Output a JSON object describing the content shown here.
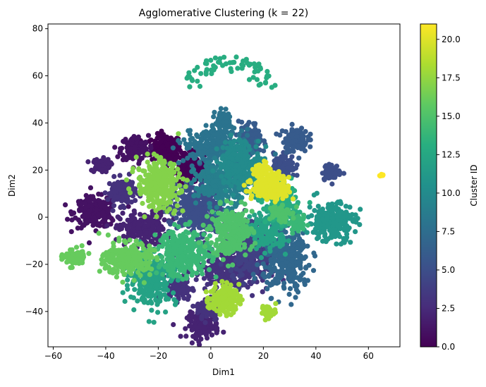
{
  "chart_data": {
    "type": "scatter",
    "title": "Agglomerative Clustering (k = 22)",
    "xlabel": "Dim1",
    "ylabel": "Dim2",
    "xlim": [
      -62,
      72
    ],
    "ylim": [
      -55,
      82
    ],
    "x_ticks": [
      -60,
      -40,
      -20,
      0,
      20,
      40,
      60
    ],
    "y_ticks": [
      -40,
      -20,
      0,
      20,
      40,
      60,
      80
    ],
    "grid": false,
    "colorbar": {
      "label": "Cluster ID",
      "range": [
        0,
        21
      ],
      "ticks": [
        0.0,
        2.5,
        5.0,
        7.5,
        10.0,
        12.5,
        15.0,
        17.5,
        20.0
      ],
      "tick_labels": [
        "0.0",
        "2.5",
        "5.0",
        "7.5",
        "10.0",
        "12.5",
        "15.0",
        "17.5",
        "20.0"
      ],
      "colormap": "viridis"
    },
    "clusters": [
      {
        "id": 0,
        "center": [
          -17,
          29
        ],
        "sx": 2.8,
        "sy": 3,
        "n": 180
      },
      {
        "id": 0,
        "center": [
          -8,
          21
        ],
        "sx": 3,
        "sy": 3.2,
        "n": 160
      },
      {
        "id": 1,
        "center": [
          -44,
          2
        ],
        "sx": 4,
        "sy": 3.2,
        "n": 220
      },
      {
        "id": 1,
        "center": [
          -29,
          29
        ],
        "sx": 2.6,
        "sy": 2.8,
        "n": 150
      },
      {
        "id": 2,
        "center": [
          -42,
          22
        ],
        "sx": 1.8,
        "sy": 1.4,
        "n": 70
      },
      {
        "id": 2,
        "center": [
          -26,
          -5
        ],
        "sx": 4.5,
        "sy": 3.5,
        "n": 220
      },
      {
        "id": 2,
        "center": [
          -3,
          -46
        ],
        "sx": 3,
        "sy": 2.6,
        "n": 120
      },
      {
        "id": 3,
        "center": [
          -34,
          11
        ],
        "sx": 2.6,
        "sy": 2.8,
        "n": 130
      },
      {
        "id": 3,
        "center": [
          8,
          -22
        ],
        "sx": 7,
        "sy": 4.5,
        "n": 320
      },
      {
        "id": 3,
        "center": [
          -12,
          -30
        ],
        "sx": 2.4,
        "sy": 2.6,
        "n": 90
      },
      {
        "id": 3,
        "center": [
          -1,
          -39
        ],
        "sx": 2.2,
        "sy": 2.4,
        "n": 90
      },
      {
        "id": 4,
        "center": [
          15,
          -12
        ],
        "sx": 4,
        "sy": 6,
        "n": 260
      },
      {
        "id": 5,
        "center": [
          -6,
          3
        ],
        "sx": 5,
        "sy": 5.5,
        "n": 320
      },
      {
        "id": 5,
        "center": [
          28,
          22
        ],
        "sx": 2,
        "sy": 2.5,
        "n": 100
      },
      {
        "id": 5,
        "center": [
          46,
          19
        ],
        "sx": 1.8,
        "sy": 1.6,
        "n": 60
      },
      {
        "id": 6,
        "center": [
          32,
          33
        ],
        "sx": 2.4,
        "sy": 2.6,
        "n": 110
      },
      {
        "id": 6,
        "center": [
          15,
          33
        ],
        "sx": 2.2,
        "sy": 3.5,
        "n": 120
      },
      {
        "id": 7,
        "center": [
          29,
          -18
        ],
        "sx": 4.5,
        "sy": 7,
        "n": 300
      },
      {
        "id": 8,
        "center": [
          1,
          30
        ],
        "sx": 5.5,
        "sy": 3.5,
        "n": 280
      },
      {
        "id": 8,
        "center": [
          5,
          41
        ],
        "sx": 1.6,
        "sy": 2.2,
        "n": 70
      },
      {
        "id": 9,
        "center": [
          4,
          14
        ],
        "sx": 5,
        "sy": 4.5,
        "n": 280
      },
      {
        "id": 10,
        "center": [
          11,
          23
        ],
        "sx": 4,
        "sy": 5,
        "n": 240
      },
      {
        "id": 11,
        "center": [
          46,
          -2
        ],
        "sx": 4.5,
        "sy": 4,
        "n": 240
      },
      {
        "id": 11,
        "center": [
          19,
          12
        ],
        "sx": 2,
        "sy": 2,
        "n": 60
      },
      {
        "id": 12,
        "center": [
          -22,
          -26
        ],
        "sx": 4.5,
        "sy": 5.5,
        "n": 280
      },
      {
        "id": 12,
        "center": [
          22,
          -6
        ],
        "sx": 3.5,
        "sy": 4,
        "n": 160
      },
      {
        "id": 13,
        "center": [
          7,
          64
        ],
        "sx": 11,
        "sy": 6,
        "n": 70,
        "sparse": true
      },
      {
        "id": 13,
        "center": [
          27,
          5
        ],
        "sx": 3,
        "sy": 3.5,
        "n": 160
      },
      {
        "id": 14,
        "center": [
          -10,
          -15
        ],
        "sx": 5,
        "sy": 5,
        "n": 300
      },
      {
        "id": 14,
        "center": [
          33,
          -3
        ],
        "sx": 1.6,
        "sy": 1.6,
        "n": 50
      },
      {
        "id": 15,
        "center": [
          8,
          -6
        ],
        "sx": 4,
        "sy": 5,
        "n": 240
      },
      {
        "id": 15,
        "center": [
          26,
          2
        ],
        "sx": 2,
        "sy": 2,
        "n": 70
      },
      {
        "id": 16,
        "center": [
          -32,
          -18
        ],
        "sx": 4.5,
        "sy": 3.5,
        "n": 240
      },
      {
        "id": 16,
        "center": [
          -52,
          -17
        ],
        "sx": 2,
        "sy": 1.8,
        "n": 90
      },
      {
        "id": 17,
        "center": [
          -20,
          14
        ],
        "sx": 4,
        "sy": 5,
        "n": 320
      },
      {
        "id": 18,
        "center": [
          5,
          -35
        ],
        "sx": 2.8,
        "sy": 3,
        "n": 150
      },
      {
        "id": 18,
        "center": [
          22,
          -40
        ],
        "sx": 1.4,
        "sy": 1.4,
        "n": 40
      },
      {
        "id": 20,
        "center": [
          23,
          13
        ],
        "sx": 3.5,
        "sy": 3,
        "n": 200
      },
      {
        "id": 20,
        "center": [
          19,
          20
        ],
        "sx": 1.6,
        "sy": 1.6,
        "n": 50
      },
      {
        "id": 21,
        "center": [
          65,
          18
        ],
        "sx": 0.4,
        "sy": 0.4,
        "n": 8
      }
    ]
  }
}
